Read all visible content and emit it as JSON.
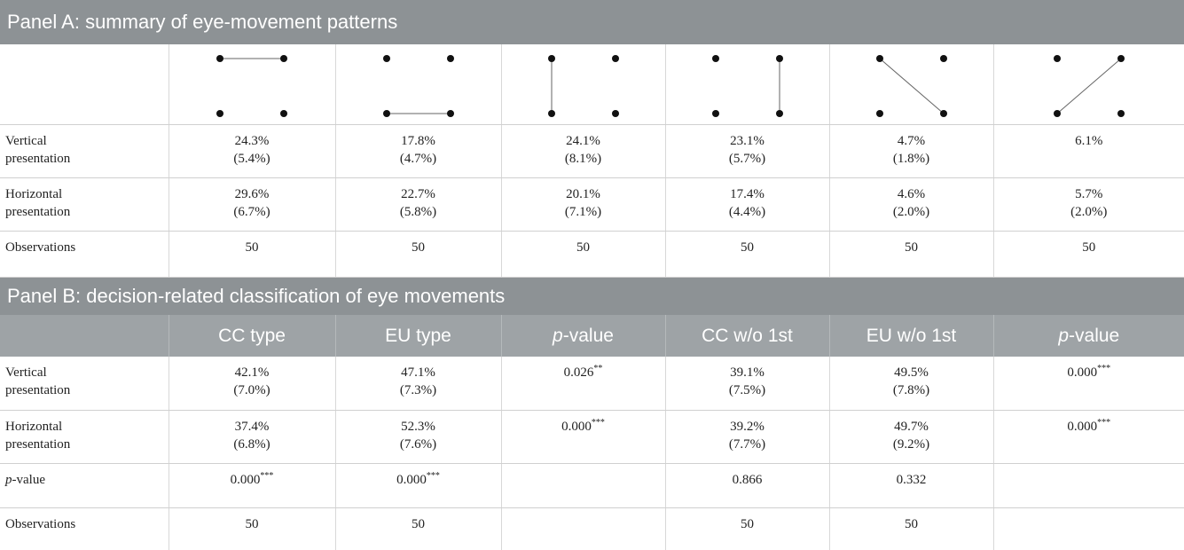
{
  "panel_a": {
    "title": "Panel A: summary of eye-movement patterns",
    "rows": [
      {
        "label": "Vertical presentation",
        "cells": [
          [
            "24.3%",
            "(5.4%)"
          ],
          [
            "17.8%",
            "(4.7%)"
          ],
          [
            "24.1%",
            "(8.1%)"
          ],
          [
            "23.1%",
            "(5.7%)"
          ],
          [
            "4.7%",
            "(1.8%)"
          ],
          [
            "6.1%"
          ]
        ]
      },
      {
        "label": "Horizontal presentation",
        "cells": [
          [
            "29.6%",
            "(6.7%)"
          ],
          [
            "22.7%",
            "(5.8%)"
          ],
          [
            "20.1%",
            "(7.1%)"
          ],
          [
            "17.4%",
            "(4.4%)"
          ],
          [
            "4.6%",
            "(2.0%)"
          ],
          [
            "5.7%",
            "(2.0%)"
          ]
        ]
      },
      {
        "label": "Observations",
        "cells": [
          [
            "50"
          ],
          [
            "50"
          ],
          [
            "50"
          ],
          [
            "50"
          ],
          [
            "50"
          ],
          [
            "50"
          ]
        ]
      }
    ]
  },
  "panel_b": {
    "title": "Panel B: decision-related classification of eye movements",
    "columns": [
      "CC type",
      "EU type",
      {
        "italic": "p",
        "text": "-value"
      },
      "CC w/o 1st",
      "EU w/o 1st",
      {
        "italic": "p",
        "text": "-value"
      }
    ],
    "rows": [
      {
        "label": "Vertical presentation",
        "cells": [
          [
            "42.1%",
            "(7.0%)"
          ],
          [
            "47.1%",
            "(7.3%)"
          ],
          [
            {
              "text": "0.026",
              "sup": "**"
            }
          ],
          [
            "39.1%",
            "(7.5%)"
          ],
          [
            "49.5%",
            "(7.8%)"
          ],
          [
            {
              "text": "0.000",
              "sup": "***"
            }
          ]
        ]
      },
      {
        "label": "Horizontal presentation",
        "cells": [
          [
            "37.4%",
            "(6.8%)"
          ],
          [
            "52.3%",
            "(7.6%)"
          ],
          [
            {
              "text": "0.000",
              "sup": "***"
            }
          ],
          [
            "39.2%",
            "(7.7%)"
          ],
          [
            "49.7%",
            "(9.2%)"
          ],
          [
            {
              "text": "0.000",
              "sup": "***"
            }
          ]
        ]
      },
      {
        "label": {
          "italic": "p",
          "text": "-value"
        },
        "cells": [
          [
            {
              "text": "0.000",
              "sup": "***"
            }
          ],
          [
            {
              "text": "0.000",
              "sup": "***"
            }
          ],
          [],
          [
            "0.866"
          ],
          [
            "0.332"
          ],
          []
        ]
      },
      {
        "label": "Observations",
        "cells": [
          [
            "50"
          ],
          [
            "50"
          ],
          [],
          [
            "50"
          ],
          [
            "50"
          ],
          []
        ]
      }
    ]
  }
}
